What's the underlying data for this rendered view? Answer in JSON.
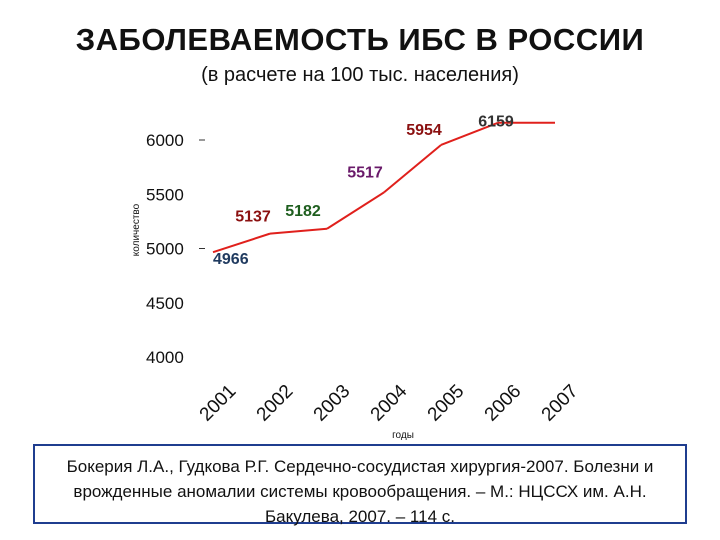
{
  "header": {
    "title": "ЗАБОЛЕВАЕМОСТЬ ИБС В РОССИИ",
    "subtitle": "(в расчете на 100 тыс. населения)"
  },
  "chart_data": {
    "type": "line",
    "x": [
      "2001",
      "2002",
      "2003",
      "2004",
      "2005",
      "2006",
      "2007"
    ],
    "series": [
      {
        "values": [
          4966,
          5137,
          5182,
          5517,
          5954,
          6159,
          6159
        ]
      }
    ],
    "data_labels": [
      "4966",
      "5137",
      "5182",
      "5517",
      "5954",
      "6159"
    ],
    "label_colors": [
      "#1f3a5f",
      "#8b1010",
      "#1e5e1e",
      "#6a1a6a",
      "#8b1010",
      "#333333"
    ],
    "line_color": "#e0201c",
    "yticks": [
      4000,
      4500,
      5000,
      5500,
      6000
    ],
    "ylim": [
      4000,
      6200
    ],
    "ylabel": "количество",
    "xlabel": "годы",
    "grid": false
  },
  "footer": {
    "caption": "Бокерия Л.А., Гудкова Р.Г. Сердечно-сосудистая хирургия-2007. Болезни и врожденные аномалии системы кровообращения. – М.: НЦССХ им. А.Н. Бакулева, 2007. – 114 с."
  }
}
